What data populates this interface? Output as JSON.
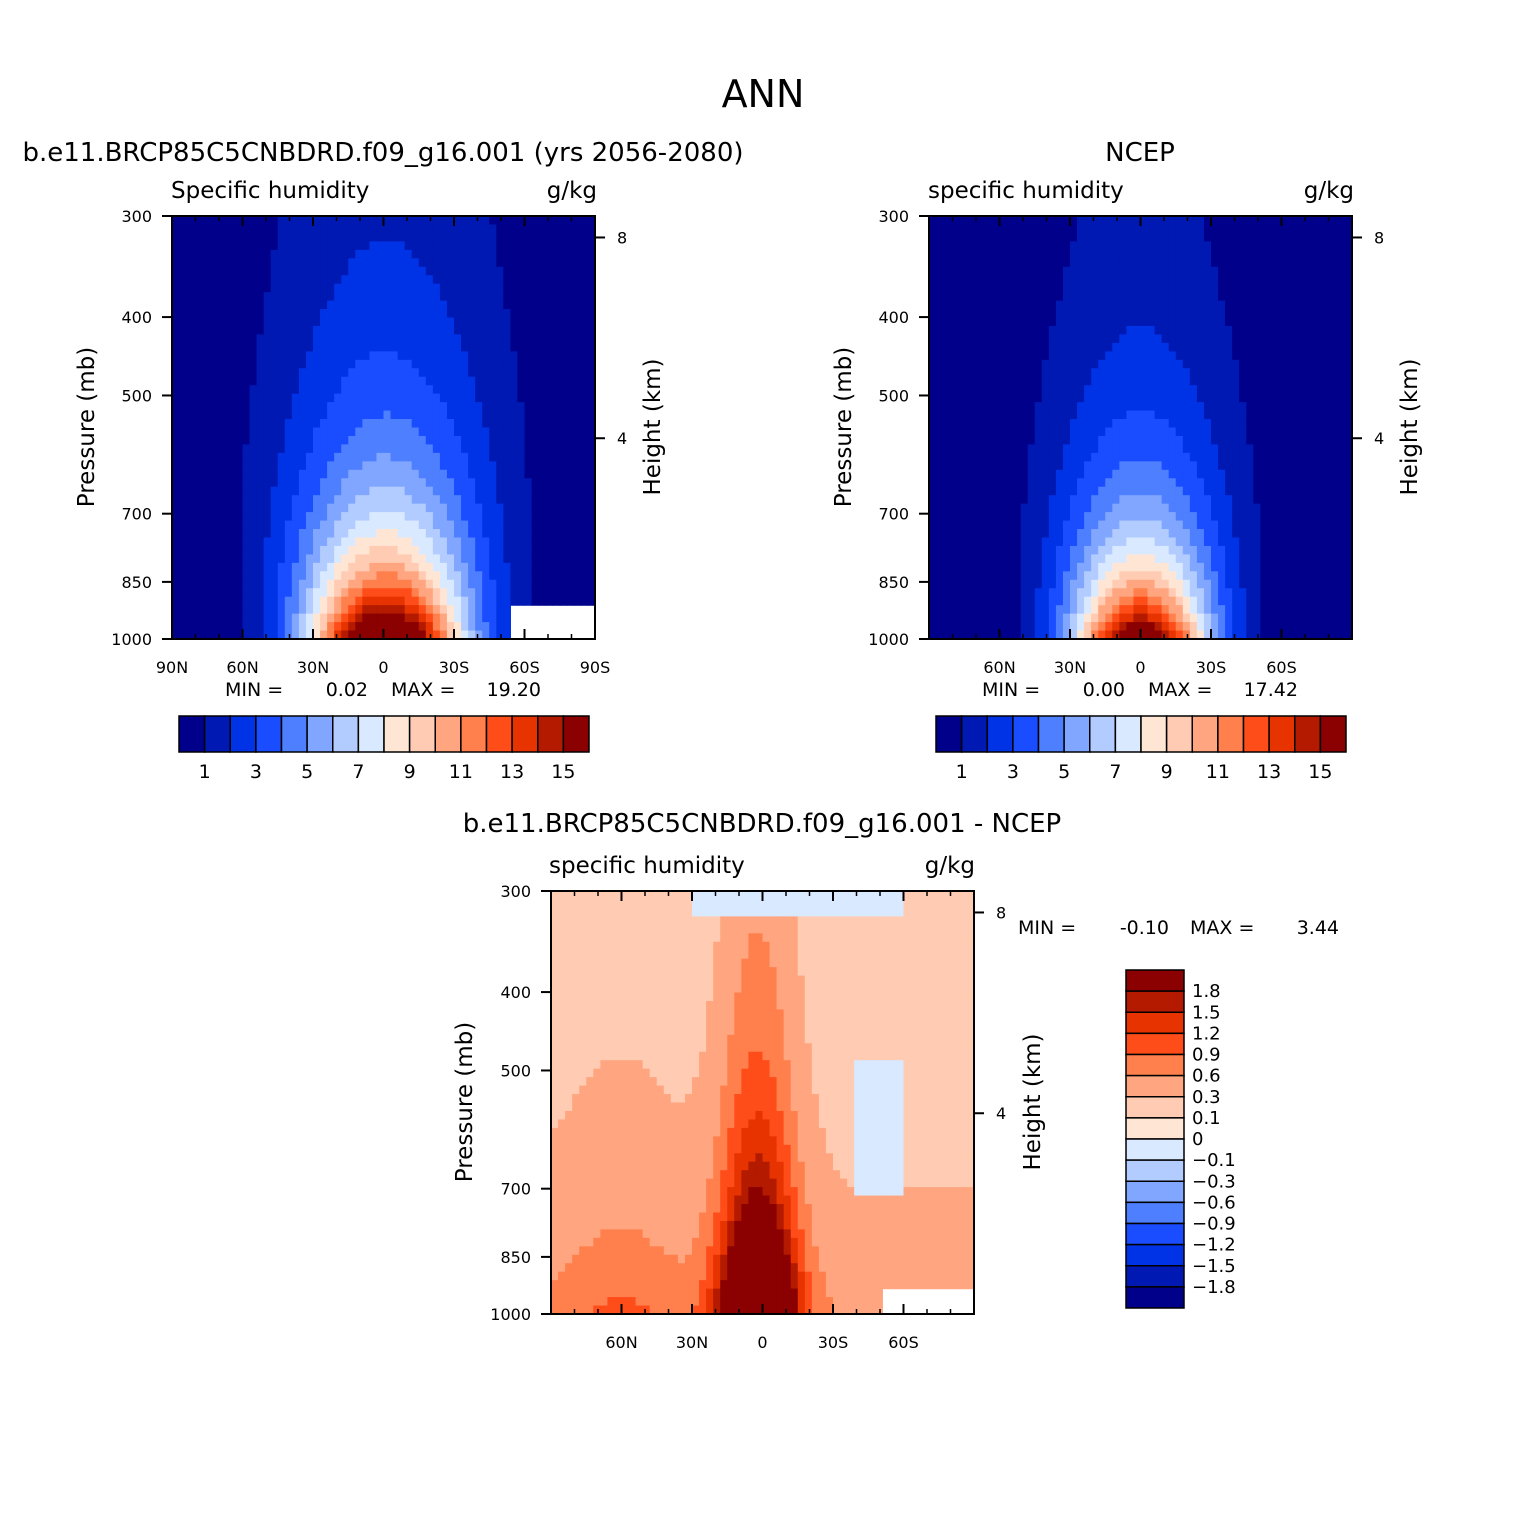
{
  "figure": {
    "title": "ANN"
  },
  "colors": {
    "abs_levels": [
      "#00008b",
      "#0019b3",
      "#0033e6",
      "#1a4dff",
      "#4d7fff",
      "#80a6ff",
      "#b3ccff",
      "#d9e9ff",
      "#ffe6d4",
      "#ffccb3",
      "#ffa680",
      "#ff804d",
      "#ff4d1a",
      "#e63300",
      "#b31a00",
      "#8b0000"
    ],
    "diff_levels": [
      "#00008b",
      "#0019b3",
      "#0033e6",
      "#1a4dff",
      "#4d7fff",
      "#80a6ff",
      "#b3ccff",
      "#d9e9ff",
      "#ffe6d4",
      "#ffccb3",
      "#ffa680",
      "#ff804d",
      "#ff4d1a",
      "#e63300",
      "#b31a00",
      "#8b0000"
    ]
  },
  "chart_data": [
    {
      "type": "heatmap",
      "title": "b.e11.BRCP85C5CNBDRD.f09_g16.001 (yrs 2056-2080)",
      "left_string": "Specific humidity",
      "right_string": "g/kg",
      "ylabel": "Pressure (mb)",
      "ylabel_right": "Height (km)",
      "x_ticks": [
        "90N",
        "60N",
        "30N",
        "0",
        "30S",
        "60S",
        "90S"
      ],
      "x_tick_values": [
        90,
        60,
        30,
        0,
        -30,
        -60,
        -90
      ],
      "xlim": [
        90,
        -90
      ],
      "y_ticks": [
        "300",
        "400",
        "500",
        "700",
        "850",
        "1000"
      ],
      "y_tick_values": [
        300,
        400,
        500,
        700,
        850,
        1000
      ],
      "ylim": [
        1000,
        300
      ],
      "y_right_ticks": [
        "8",
        "4"
      ],
      "min_label": "MIN =",
      "min_value": "0.02",
      "max_label": "MAX =",
      "max_value": "19.20",
      "colorbar_orientation": "horizontal",
      "colorbar_levels": [
        1,
        2,
        3,
        4,
        5,
        6,
        7,
        8,
        9,
        10,
        11,
        12,
        13,
        14,
        15
      ],
      "colorbar_ticks": [
        "1",
        "3",
        "5",
        "7",
        "9",
        "11",
        "13",
        "15"
      ],
      "peak": 19.2,
      "peak_lat": -1,
      "peak_width": 32,
      "scale_height": 2.1,
      "top_width_frac": 0.55,
      "missing": [
        {
          "lat": [
            -55,
            -90
          ],
          "p": [
            910,
            1000
          ]
        }
      ]
    },
    {
      "type": "heatmap",
      "title": "NCEP",
      "left_string": "specific humidity",
      "right_string": "g/kg",
      "ylabel": "Pressure (mb)",
      "ylabel_right": "Height (km)",
      "x_ticks": [
        "60N",
        "30N",
        "0",
        "30S",
        "60S"
      ],
      "x_tick_values": [
        60,
        30,
        0,
        -30,
        -60
      ],
      "xlim": [
        90,
        -90
      ],
      "y_ticks": [
        "300",
        "400",
        "500",
        "700",
        "850",
        "1000"
      ],
      "y_tick_values": [
        300,
        400,
        500,
        700,
        850,
        1000
      ],
      "ylim": [
        1000,
        300
      ],
      "y_right_ticks": [
        "8",
        "4"
      ],
      "min_label": "MIN =",
      "min_value": "0.00",
      "max_label": "MAX =",
      "max_value": "17.42",
      "colorbar_orientation": "horizontal",
      "colorbar_levels": [
        1,
        2,
        3,
        4,
        5,
        6,
        7,
        8,
        9,
        10,
        11,
        12,
        13,
        14,
        15
      ],
      "colorbar_ticks": [
        "1",
        "3",
        "5",
        "7",
        "9",
        "11",
        "13",
        "15"
      ],
      "peak": 17.42,
      "peak_lat": 0,
      "peak_width": 28,
      "scale_height": 1.9,
      "top_width_frac": 0.5,
      "missing": []
    },
    {
      "type": "heatmap",
      "title": "b.e11.BRCP85C5CNBDRD.f09_g16.001 - NCEP",
      "left_string": "specific humidity",
      "right_string": "g/kg",
      "ylabel": "Pressure (mb)",
      "ylabel_right": "Height (km)",
      "x_ticks": [
        "60N",
        "30N",
        "0",
        "30S",
        "60S"
      ],
      "x_tick_values": [
        60,
        30,
        0,
        -30,
        -60
      ],
      "xlim": [
        90,
        -90
      ],
      "y_ticks": [
        "300",
        "400",
        "500",
        "700",
        "850",
        "1000"
      ],
      "y_tick_values": [
        300,
        400,
        500,
        700,
        850,
        1000
      ],
      "ylim": [
        1000,
        300
      ],
      "y_right_ticks": [
        "8",
        "4"
      ],
      "min_label": "MIN =",
      "min_value": "-0.10",
      "max_label": "MAX =",
      "max_value": "3.44",
      "colorbar_orientation": "vertical",
      "colorbar_levels": [
        -1.8,
        -1.5,
        -1.2,
        -0.9,
        -0.6,
        -0.3,
        -0.1,
        0,
        0.1,
        0.3,
        0.6,
        0.9,
        1.2,
        1.5,
        1.8
      ],
      "colorbar_ticks": [
        "1.8",
        "1.5",
        "1.2",
        "0.9",
        "0.6",
        "0.3",
        "0.1",
        "0",
        "−0.1",
        "−0.3",
        "−0.6",
        "−0.9",
        "−1.2",
        "−1.5",
        "−1.8"
      ],
      "missing": [
        {
          "lat": [
            -50,
            -90
          ],
          "p": [
            920,
            1000
          ]
        }
      ]
    }
  ]
}
